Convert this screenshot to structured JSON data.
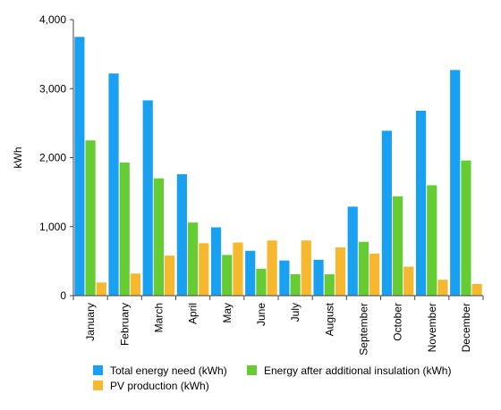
{
  "chart_data": {
    "type": "bar",
    "title": "",
    "xlabel": "",
    "ylabel": "kWh",
    "ylim": [
      0,
      4000
    ],
    "yticks": [
      0,
      1000,
      2000,
      3000,
      4000
    ],
    "ytick_labels": [
      "0",
      "1,000",
      "2,000",
      "3,000",
      "4,000"
    ],
    "grid": false,
    "legend_position": "bottom",
    "categories": [
      "January",
      "February",
      "March",
      "April",
      "May",
      "June",
      "July",
      "August",
      "September",
      "October",
      "November",
      "December"
    ],
    "series": [
      {
        "name": "Total energy need (kWh)",
        "color": "#1aa0f0",
        "values": [
          3750,
          3220,
          2830,
          1760,
          990,
          650,
          510,
          520,
          1290,
          2390,
          2680,
          3270
        ]
      },
      {
        "name": "Energy after additional insulation (kWh)",
        "color": "#66cc33",
        "values": [
          2250,
          1930,
          1700,
          1060,
          590,
          390,
          310,
          310,
          780,
          1440,
          1600,
          1960
        ]
      },
      {
        "name": "PV production (kWh)",
        "color": "#f5b82e",
        "values": [
          190,
          320,
          580,
          760,
          770,
          800,
          800,
          700,
          610,
          420,
          230,
          170
        ]
      }
    ]
  }
}
